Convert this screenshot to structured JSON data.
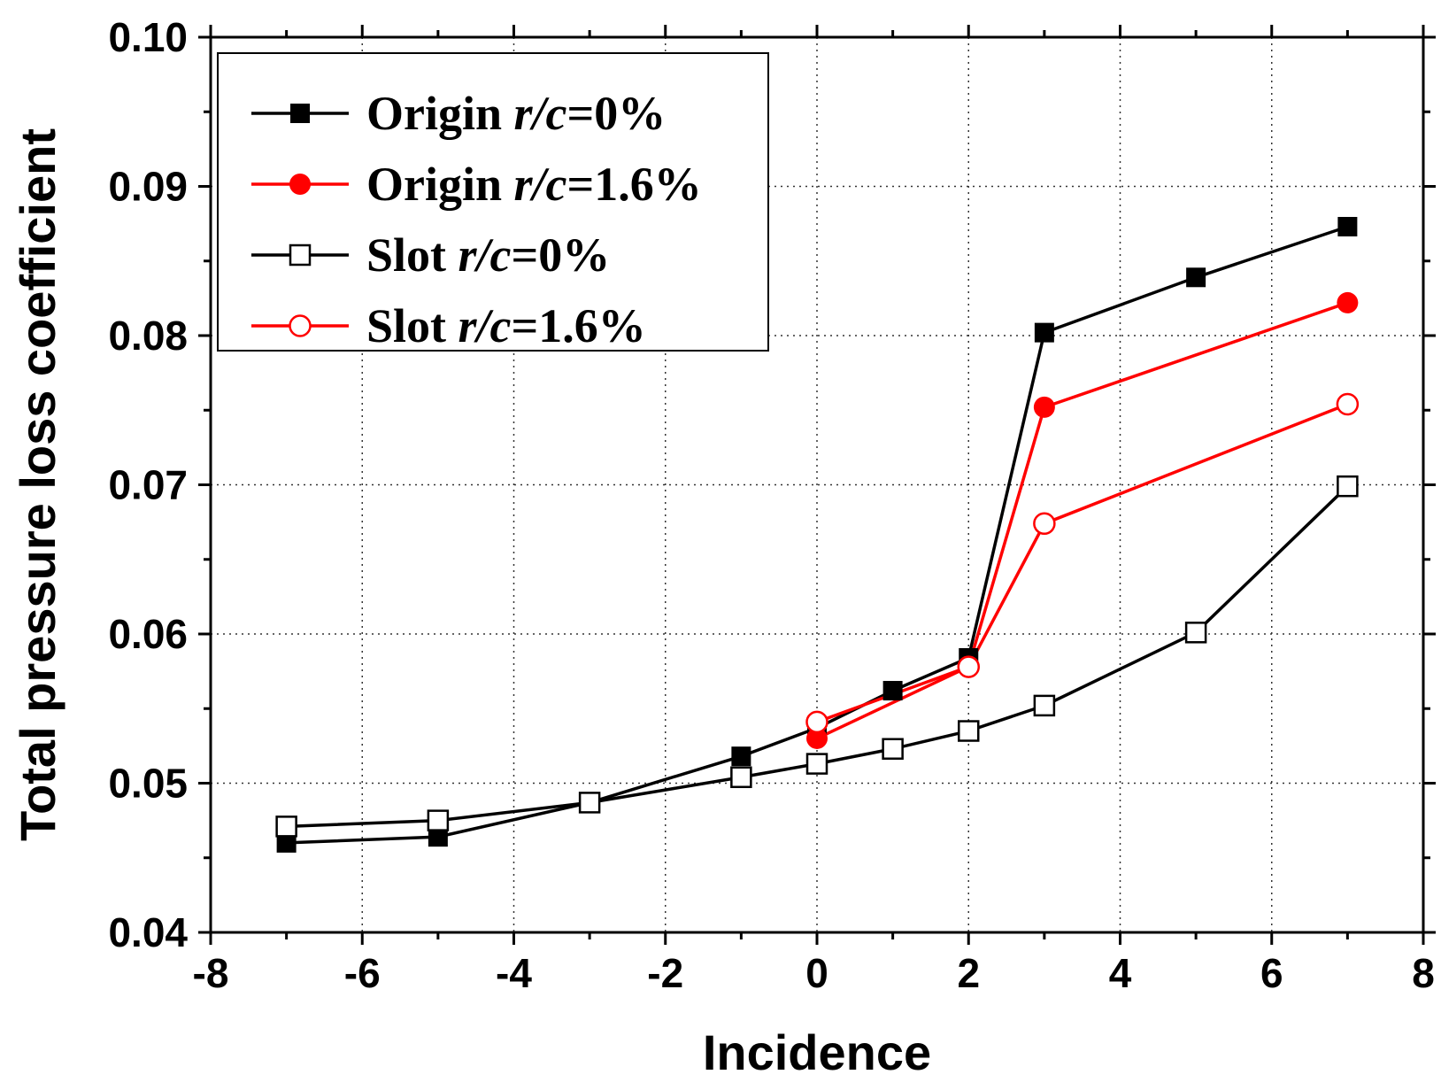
{
  "chart_data": {
    "type": "line",
    "title": "",
    "xlabel": "Incidence",
    "ylabel": "Total pressure loss coefficient",
    "xlim": [
      -8,
      8
    ],
    "ylim": [
      0.04,
      0.1
    ],
    "xticks": [
      -8,
      -6,
      -4,
      -2,
      0,
      2,
      4,
      6,
      8
    ],
    "xtick_labels": [
      "-8",
      "-6",
      "-4",
      "-2",
      "0",
      "2",
      "4",
      "6",
      "8"
    ],
    "yticks": [
      0.04,
      0.05,
      0.06,
      0.07,
      0.08,
      0.09,
      0.1
    ],
    "ytick_labels": [
      "0.04",
      "0.05",
      "0.06",
      "0.07",
      "0.08",
      "0.09",
      "0.10"
    ],
    "grid": true,
    "legend_position": "top-left",
    "series": [
      {
        "name": "Origin r/c=0%",
        "legend_prefix": "Origin ",
        "legend_italic": "r/c",
        "legend_suffix": "=0%",
        "color": "#000000",
        "marker": "square-filled",
        "x": [
          -7,
          -5,
          -3,
          -1,
          0,
          1,
          2,
          3,
          5,
          7
        ],
        "y": [
          0.046,
          0.0464,
          0.0487,
          0.0518,
          0.0537,
          0.0562,
          0.0584,
          0.0802,
          0.0839,
          0.0873
        ]
      },
      {
        "name": "Origin r/c=1.6%",
        "legend_prefix": "Origin ",
        "legend_italic": "r/c",
        "legend_suffix": "=1.6%",
        "color": "#ff0000",
        "marker": "circle-filled",
        "x": [
          0,
          2,
          3,
          7
        ],
        "y": [
          0.053,
          0.0578,
          0.0752,
          0.0822
        ]
      },
      {
        "name": "Slot r/c=0%",
        "legend_prefix": "Slot ",
        "legend_italic": "r/c",
        "legend_suffix": "=0%",
        "color": "#000000",
        "marker": "square-open",
        "x": [
          -7,
          -5,
          -3,
          -1,
          0,
          1,
          2,
          3,
          5,
          7
        ],
        "y": [
          0.0471,
          0.0475,
          0.0487,
          0.0504,
          0.0513,
          0.0523,
          0.0535,
          0.0552,
          0.0601,
          0.0699
        ]
      },
      {
        "name": "Slot r/c=1.6%",
        "legend_prefix": "Slot ",
        "legend_italic": "r/c",
        "legend_suffix": "=1.6%",
        "color": "#ff0000",
        "marker": "circle-open",
        "x": [
          0,
          2,
          3,
          7
        ],
        "y": [
          0.0541,
          0.0578,
          0.0674,
          0.0754
        ]
      }
    ]
  }
}
